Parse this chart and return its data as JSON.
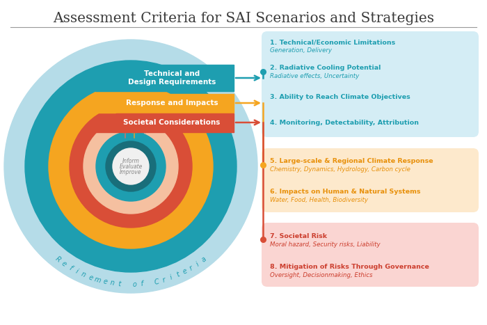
{
  "title": "Assessment Criteria for SAI Scenarios and Strategies",
  "bg_color": "#ffffff",
  "title_color": "#3a3a3a",
  "boxes": [
    {
      "bg": "#d4edf5",
      "items": [
        {
          "bold": "1. Technical/Economic Limitations",
          "italic": "Generation, Delivery"
        },
        {
          "bold": "2. Radiative Cooling Potential",
          "italic": "Radiative effects, Uncertainty"
        },
        {
          "bold": "3. Ability to Reach Climate Objectives",
          "italic": ""
        },
        {
          "bold": "4. Monitoring, Detectability, Attribution",
          "italic": ""
        }
      ],
      "color": "#1e9eb0"
    },
    {
      "bg": "#fde9cc",
      "items": [
        {
          "bold": "5. Large-scale & Regional Climate Response",
          "italic": "Chemistry, Dynamics, Hydrology, Carbon cycle"
        },
        {
          "bold": "6. Impacts on Human & Natural Systems",
          "italic": "Water, Food, Health, Biodiversity"
        }
      ],
      "color": "#e8900a"
    },
    {
      "bg": "#fad5d2",
      "items": [
        {
          "bold": "7. Societal Risk",
          "italic": "Moral hazard, Security risks, Liability"
        },
        {
          "bold": "8. Mitigation of Risks Through Governance",
          "italic": "Oversight, Decisionmaking, Ethics"
        }
      ],
      "color": "#cc3e2e"
    }
  ],
  "center_text": [
    "Inform",
    "Evaluate",
    "Improve"
  ],
  "refinement_label": "Refinement of Criteria",
  "teal": "#1e9eb0",
  "orange": "#e8900a",
  "red": "#cc3e2e",
  "light_teal": "#b8dde8",
  "teal_ring": "#1e9eb0",
  "orange_ring": "#f5a623",
  "red_ring": "#d94e37",
  "peach": "#f5c5a0",
  "inner_teal": "#1e9eb0",
  "dark_teal": "#1a6e7a",
  "center_gray": "#efefef"
}
